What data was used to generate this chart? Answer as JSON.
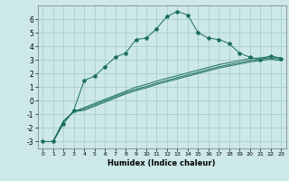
{
  "title": "",
  "xlabel": "Humidex (Indice chaleur)",
  "bg_color": "#cce8e8",
  "grid_color": "#aacece",
  "line_color": "#1a6e5e",
  "xlim": [
    -0.5,
    23.5
  ],
  "ylim": [
    -3.5,
    7.0
  ],
  "xticks": [
    0,
    1,
    2,
    3,
    4,
    5,
    6,
    7,
    8,
    9,
    10,
    11,
    12,
    13,
    14,
    15,
    16,
    17,
    18,
    19,
    20,
    21,
    22,
    23
  ],
  "yticks": [
    -3,
    -2,
    -1,
    0,
    1,
    2,
    3,
    4,
    5,
    6
  ],
  "main_line": {
    "x": [
      0,
      1,
      2,
      3,
      4,
      5,
      6,
      7,
      8,
      9,
      10,
      11,
      12,
      13,
      14,
      15,
      16,
      17,
      18,
      19,
      20,
      21,
      22,
      23
    ],
    "y": [
      -3.0,
      -3.0,
      -1.7,
      -0.7,
      1.5,
      1.8,
      2.5,
      3.2,
      3.5,
      4.5,
      4.6,
      5.3,
      6.2,
      6.55,
      6.3,
      5.0,
      4.6,
      4.5,
      4.2,
      3.5,
      3.2,
      3.0,
      3.3,
      3.1
    ]
  },
  "flat_lines": [
    {
      "x": [
        0,
        1,
        2,
        3,
        4,
        5,
        6,
        7,
        8,
        9,
        10,
        11,
        12,
        13,
        14,
        15,
        16,
        17,
        18,
        19,
        20,
        21,
        22,
        23
      ],
      "y": [
        -3.0,
        -3.0,
        -1.5,
        -0.8,
        -0.5,
        -0.2,
        0.1,
        0.4,
        0.7,
        1.0,
        1.2,
        1.45,
        1.65,
        1.85,
        2.05,
        2.25,
        2.45,
        2.65,
        2.8,
        2.95,
        3.1,
        3.15,
        3.25,
        3.15
      ]
    },
    {
      "x": [
        0,
        1,
        2,
        3,
        4,
        5,
        6,
        7,
        8,
        9,
        10,
        11,
        12,
        13,
        14,
        15,
        16,
        17,
        18,
        19,
        20,
        21,
        22,
        23
      ],
      "y": [
        -3.0,
        -3.0,
        -1.5,
        -0.8,
        -0.6,
        -0.3,
        0.0,
        0.3,
        0.6,
        0.85,
        1.05,
        1.3,
        1.5,
        1.7,
        1.9,
        2.1,
        2.3,
        2.5,
        2.65,
        2.8,
        2.95,
        3.05,
        3.15,
        3.05
      ]
    },
    {
      "x": [
        0,
        1,
        2,
        3,
        4,
        5,
        6,
        7,
        8,
        9,
        10,
        11,
        12,
        13,
        14,
        15,
        16,
        17,
        18,
        19,
        20,
        21,
        22,
        23
      ],
      "y": [
        -3.0,
        -3.0,
        -1.5,
        -0.8,
        -0.7,
        -0.4,
        -0.1,
        0.2,
        0.5,
        0.75,
        0.95,
        1.2,
        1.4,
        1.6,
        1.8,
        2.0,
        2.2,
        2.4,
        2.55,
        2.7,
        2.85,
        2.95,
        3.05,
        2.95
      ]
    }
  ]
}
